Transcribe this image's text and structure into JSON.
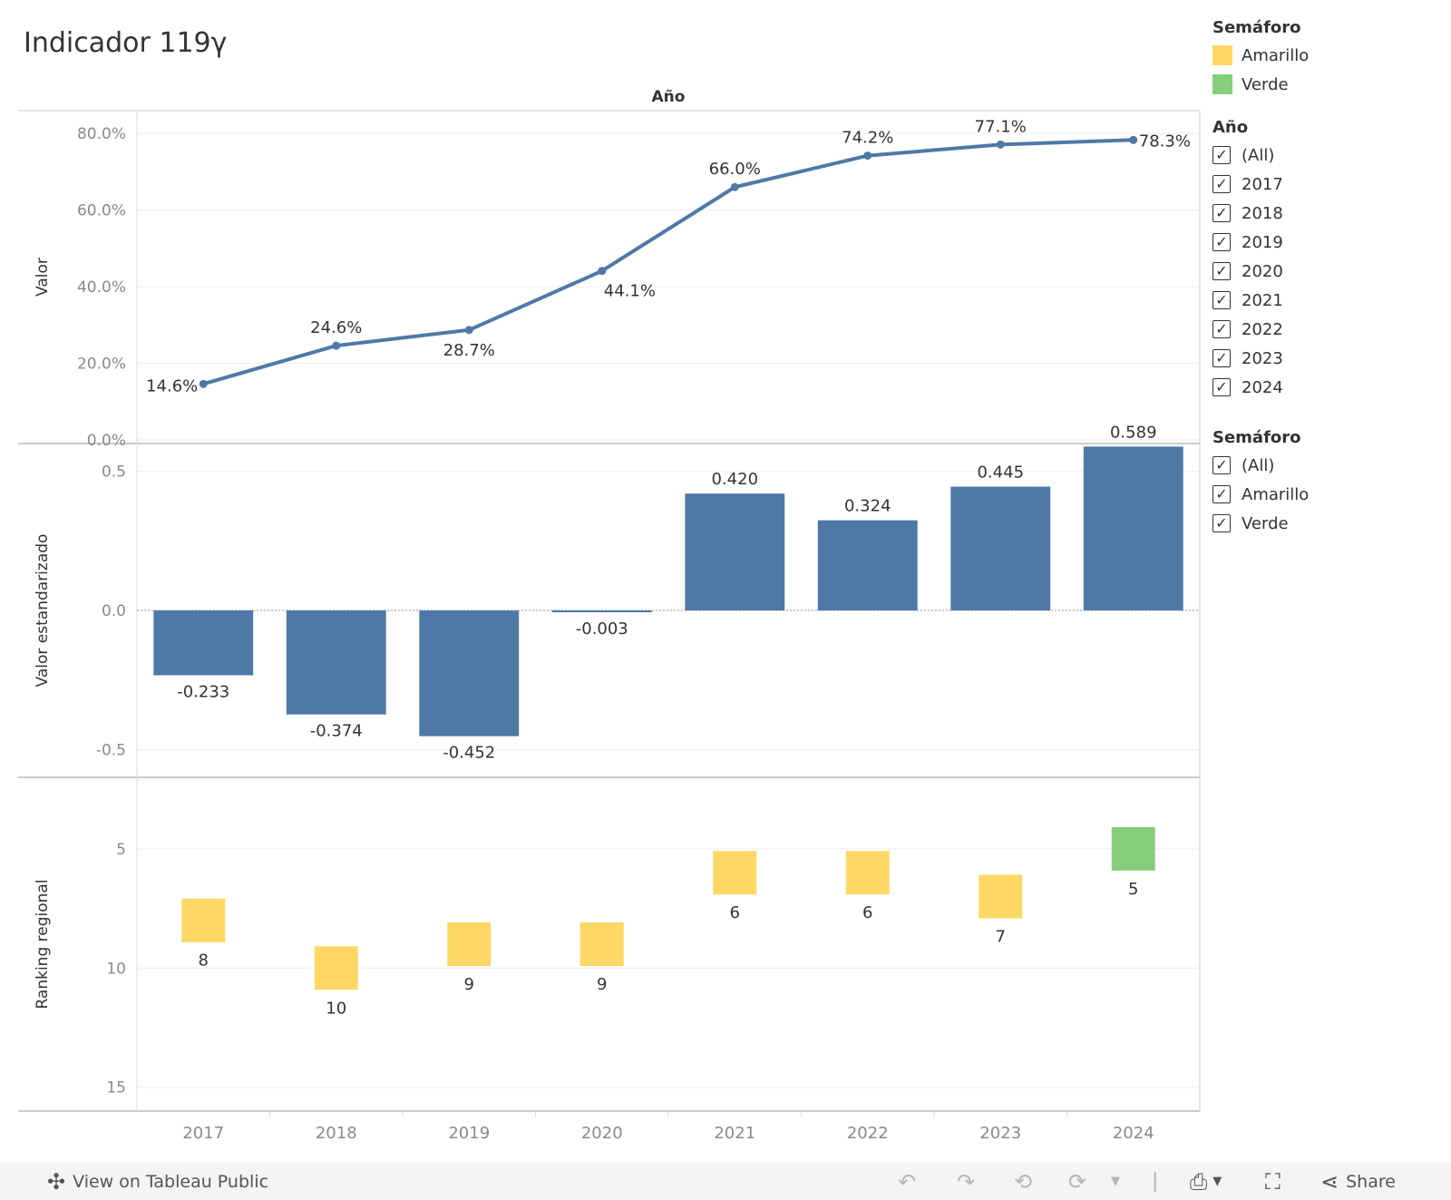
{
  "title": "Indicador 119γ",
  "header_label": "Año",
  "legend_semaforo": {
    "title": "Semáforo",
    "items": [
      {
        "label": "Amarillo",
        "color": "#FDD865"
      },
      {
        "label": "Verde",
        "color": "#88CD7B"
      }
    ]
  },
  "filter_anio": {
    "title": "Año",
    "options": [
      "(All)",
      "2017",
      "2018",
      "2019",
      "2020",
      "2021",
      "2022",
      "2023",
      "2024"
    ]
  },
  "filter_semaforo": {
    "title": "Semáforo",
    "options": [
      "(All)",
      "Amarillo",
      "Verde"
    ]
  },
  "check_glyph": "✓",
  "chart_data": {
    "type": "multi-panel",
    "categories": [
      "2017",
      "2018",
      "2019",
      "2020",
      "2021",
      "2022",
      "2023",
      "2024"
    ],
    "bar_color": "#4E79A7",
    "line": {
      "type": "line",
      "ylabel": "Valor",
      "values": [
        14.6,
        24.6,
        28.7,
        44.1,
        66.0,
        74.2,
        77.1,
        78.3
      ],
      "labels": [
        "14.6%",
        "24.6%",
        "28.7%",
        "44.1%",
        "66.0%",
        "74.2%",
        "77.1%",
        "78.3%"
      ],
      "ylim": [
        0,
        85
      ],
      "ticks": [
        0,
        20,
        40,
        60,
        80
      ],
      "tick_labels": [
        "0.0%",
        "20.0%",
        "40.0%",
        "60.0%",
        "80.0%"
      ]
    },
    "bars": {
      "type": "bar",
      "ylabel": "Valor estandarizado",
      "values": [
        -0.233,
        -0.374,
        -0.452,
        -0.003,
        0.42,
        0.324,
        0.445,
        0.589
      ],
      "labels": [
        "-0.233",
        "-0.374",
        "-0.452",
        "-0.003",
        "0.420",
        "0.324",
        "0.445",
        "0.589"
      ],
      "ylim": [
        -0.6,
        0.6
      ],
      "ticks": [
        -0.5,
        0,
        0.5
      ],
      "tick_labels": [
        "-0.5",
        "0.0",
        "0.5"
      ]
    },
    "ranking": {
      "type": "scatter",
      "ylabel": "Ranking regional",
      "values": [
        8,
        10,
        9,
        9,
        6,
        6,
        7,
        5
      ],
      "labels": [
        "8",
        "10",
        "9",
        "9",
        "6",
        "6",
        "7",
        "5"
      ],
      "semaforo": [
        "Amarillo",
        "Amarillo",
        "Amarillo",
        "Amarillo",
        "Amarillo",
        "Amarillo",
        "Amarillo",
        "Verde"
      ],
      "ylim": [
        2,
        16
      ],
      "reversed": true,
      "ticks": [
        5,
        10,
        15
      ],
      "tick_labels": [
        "5",
        "10",
        "15"
      ]
    }
  },
  "toolbar": {
    "view_label": "View on Tableau Public",
    "share_label": "Share"
  }
}
